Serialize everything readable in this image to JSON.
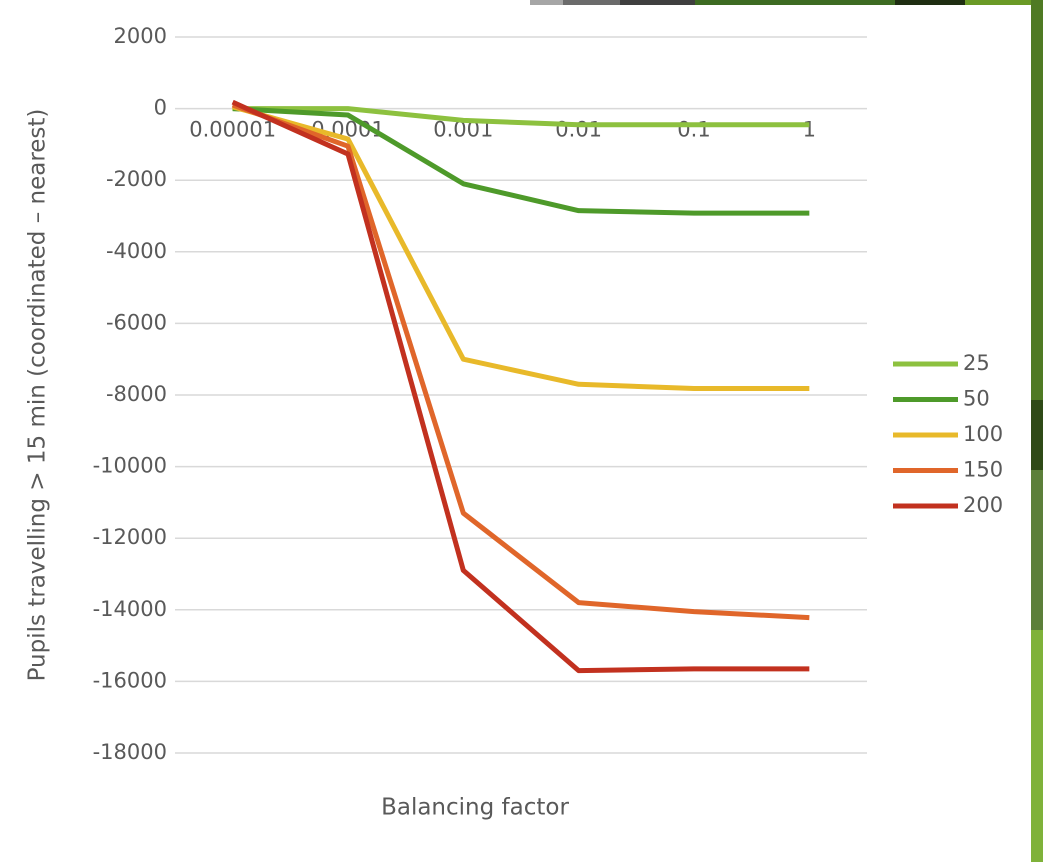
{
  "chart_data": {
    "type": "line",
    "x_label": "Balancing factor",
    "y_label": "Pupils travelling  > 15 min (coordinated – nearest)",
    "categories": [
      "0.00001",
      "0.0001",
      "0.001",
      "0.01",
      "0.1",
      "1"
    ],
    "series": [
      {
        "name": "25",
        "color": "#8dc13f",
        "values": [
          0,
          0,
          -330,
          -450,
          -450,
          -450
        ]
      },
      {
        "name": "50",
        "color": "#4e9a2a",
        "values": [
          0,
          -180,
          -2100,
          -2850,
          -2920,
          -2920
        ]
      },
      {
        "name": "100",
        "color": "#e8b92a",
        "values": [
          50,
          -850,
          -7000,
          -7700,
          -7820,
          -7820
        ]
      },
      {
        "name": "150",
        "color": "#e0662a",
        "values": [
          100,
          -1050,
          -11300,
          -13800,
          -14050,
          -14220
        ]
      },
      {
        "name": "200",
        "color": "#c2311f",
        "values": [
          180,
          -1270,
          -12900,
          -15700,
          -15650,
          -15650
        ]
      }
    ],
    "ylim": [
      -18000,
      2000
    ],
    "yticks": [
      -18000,
      -16000,
      -14000,
      -12000,
      -10000,
      -8000,
      -6000,
      -4000,
      -2000,
      0,
      2000
    ],
    "grid": true,
    "legend": "right"
  }
}
